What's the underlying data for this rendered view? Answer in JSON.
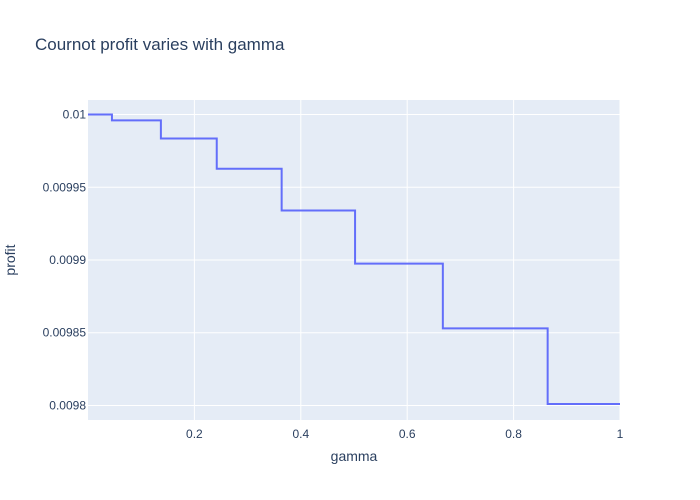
{
  "chart_data": {
    "type": "line",
    "line_shape": "step",
    "title": "Cournot profit varies with gamma",
    "xlabel": "gamma",
    "ylabel": "profit",
    "xlim": [
      0,
      1
    ],
    "ylim": [
      0.00979,
      0.01001
    ],
    "x_ticks": [
      {
        "value": 0.2,
        "label": "0.2"
      },
      {
        "value": 0.4,
        "label": "0.4"
      },
      {
        "value": 0.6,
        "label": "0.6"
      },
      {
        "value": 0.8,
        "label": "0.8"
      },
      {
        "value": 1.0,
        "label": "1"
      }
    ],
    "y_ticks": [
      {
        "value": 0.0098,
        "label": "0.0098"
      },
      {
        "value": 0.00985,
        "label": "0.00985"
      },
      {
        "value": 0.0099,
        "label": "0.0099"
      },
      {
        "value": 0.00995,
        "label": "0.00995"
      },
      {
        "value": 0.01,
        "label": "0.01"
      }
    ],
    "grid": true,
    "colors": {
      "plot_background": "#e5ecf6",
      "grid": "#ffffff",
      "line": "#636efa",
      "text": "#2a3f5f"
    },
    "series": [
      {
        "x": [
          0.0,
          0.045,
          0.137,
          0.242,
          0.364,
          0.502,
          0.667,
          0.864,
          1.0
        ],
        "y": [
          0.01,
          0.009996,
          0.0099835,
          0.0099627,
          0.009934,
          0.0098975,
          0.009853,
          0.009801,
          0.009801
        ]
      }
    ]
  }
}
